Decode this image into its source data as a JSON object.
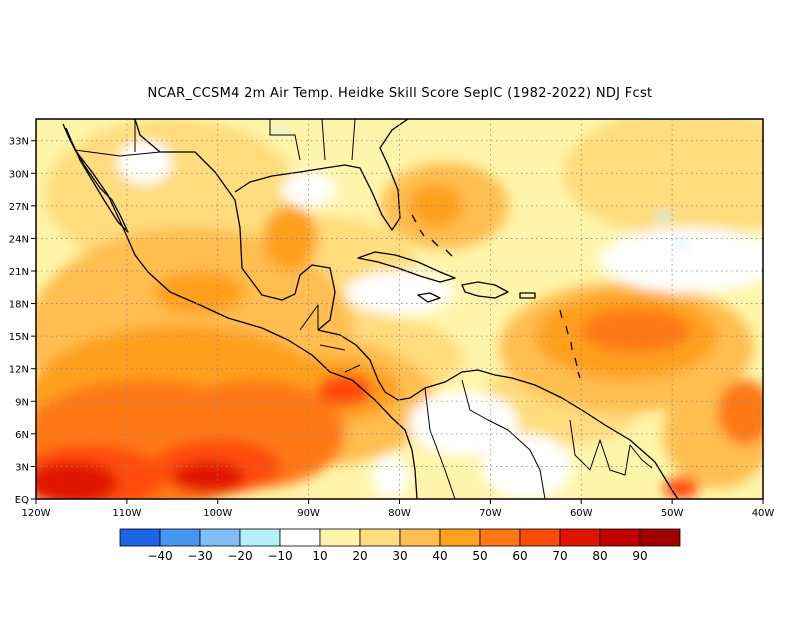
{
  "title": "NCAR_CCSM4  2m Air Temp. Heidke Skill Score SepIC (1982-2022) NDJ Fcst",
  "map": {
    "lon_range": [
      -120,
      -40
    ],
    "lat_range": [
      0,
      35
    ],
    "x_ticks": [
      {
        "lon": -120,
        "label": "120W"
      },
      {
        "lon": -110,
        "label": "110W"
      },
      {
        "lon": -100,
        "label": "100W"
      },
      {
        "lon": -90,
        "label": "90W"
      },
      {
        "lon": -80,
        "label": "80W"
      },
      {
        "lon": -70,
        "label": "70W"
      },
      {
        "lon": -60,
        "label": "60W"
      },
      {
        "lon": -50,
        "label": "50W"
      },
      {
        "lon": -40,
        "label": "40W"
      }
    ],
    "y_ticks": [
      {
        "lat": 0,
        "label": "EQ"
      },
      {
        "lat": 3,
        "label": "3N"
      },
      {
        "lat": 6,
        "label": "6N"
      },
      {
        "lat": 9,
        "label": "9N"
      },
      {
        "lat": 12,
        "label": "12N"
      },
      {
        "lat": 15,
        "label": "15N"
      },
      {
        "lat": 18,
        "label": "18N"
      },
      {
        "lat": 21,
        "label": "21N"
      },
      {
        "lat": 24,
        "label": "24N"
      },
      {
        "lat": 27,
        "label": "27N"
      },
      {
        "lat": 30,
        "label": "30N"
      },
      {
        "lat": 33,
        "label": "33N"
      }
    ],
    "gridlines": true
  },
  "colorbar": {
    "colors": [
      "#1f64e6",
      "#4696f0",
      "#82bef5",
      "#b4f0fa",
      "#ffffff",
      "#fff5aa",
      "#ffdc7d",
      "#ffbe50",
      "#ffa01e",
      "#ff7814",
      "#ff4b0a",
      "#e11400",
      "#c00000",
      "#a00000"
    ],
    "labels": [
      "-40",
      "-30",
      "-20",
      "-10",
      "10",
      "20",
      "30",
      "40",
      "50",
      "60",
      "70",
      "80",
      "90"
    ]
  },
  "skill_regions": [
    {
      "level": 1,
      "lon": -105,
      "lat": 28,
      "rx": 14,
      "ry": 7
    },
    {
      "level": 1,
      "lon": -48,
      "lat": 30,
      "rx": 14,
      "ry": 6
    },
    {
      "level": 1,
      "lon": -88,
      "lat": 21,
      "rx": 10,
      "ry": 5
    },
    {
      "level": 1,
      "lon": -85,
      "lat": 13,
      "rx": 12,
      "ry": 4
    },
    {
      "level": 1,
      "lon": -62,
      "lat": 9,
      "rx": 9,
      "ry": 4
    },
    {
      "level": 2,
      "lon": -103,
      "lat": 15,
      "rx": 18,
      "ry": 10
    },
    {
      "level": 2,
      "lon": -55,
      "lat": 14,
      "rx": 14,
      "ry": 6
    },
    {
      "level": 2,
      "lon": -90,
      "lat": 9,
      "rx": 14,
      "ry": 6
    },
    {
      "level": 2,
      "lon": -75,
      "lat": 27,
      "rx": 7,
      "ry": 4
    },
    {
      "level": 2,
      "lon": -45,
      "lat": 6,
      "rx": 6,
      "ry": 5
    },
    {
      "level": 3,
      "lon": -104,
      "lat": 9,
      "rx": 17,
      "ry": 7
    },
    {
      "level": 3,
      "lon": -55,
      "lat": 15,
      "rx": 10,
      "ry": 4
    },
    {
      "level": 3,
      "lon": -88,
      "lat": 10,
      "rx": 8,
      "ry": 3
    },
    {
      "level": 3,
      "lon": -76,
      "lat": 27,
      "rx": 3,
      "ry": 2
    },
    {
      "level": 4,
      "lon": -108,
      "lat": 5,
      "rx": 14,
      "ry": 6
    },
    {
      "level": 4,
      "lon": -96,
      "lat": 6,
      "rx": 10,
      "ry": 5
    },
    {
      "level": 4,
      "lon": -54,
      "lat": 15.5,
      "rx": 6,
      "ry": 2
    },
    {
      "level": 4,
      "lon": -42,
      "lat": 8,
      "rx": 3,
      "ry": 3
    },
    {
      "level": 5,
      "lon": -114,
      "lat": 2,
      "rx": 8,
      "ry": 3
    },
    {
      "level": 5,
      "lon": -100,
      "lat": 3,
      "rx": 7,
      "ry": 2.5
    },
    {
      "level": 5,
      "lon": -86,
      "lat": 10,
      "rx": 3,
      "ry": 1.5
    },
    {
      "level": 5,
      "lon": -49,
      "lat": 1,
      "rx": 2,
      "ry": 1
    },
    {
      "level": 6,
      "lon": -116,
      "lat": 1.5,
      "rx": 5,
      "ry": 2
    },
    {
      "level": 6,
      "lon": -101,
      "lat": 2,
      "rx": 4,
      "ry": 1.5
    },
    {
      "level": 3,
      "lon": -102,
      "lat": 19,
      "rx": 5,
      "ry": 2
    },
    {
      "level": 3,
      "lon": -92,
      "lat": 24,
      "rx": 3,
      "ry": 3
    },
    {
      "level": 2,
      "lon": -110,
      "lat": 21,
      "rx": 4,
      "ry": 2
    },
    {
      "level": 0,
      "lon": -90,
      "lat": 28.5,
      "rx": 3,
      "ry": 1.6
    },
    {
      "level": 0,
      "lon": -80,
      "lat": 19,
      "rx": 6,
      "ry": 2
    },
    {
      "level": 0,
      "lon": -48,
      "lat": 22,
      "rx": 10,
      "ry": 3
    },
    {
      "level": 0,
      "lon": -108,
      "lat": 31,
      "rx": 3,
      "ry": 2
    },
    {
      "level": 0,
      "lon": -73,
      "lat": 7,
      "rx": 6,
      "ry": 3
    },
    {
      "level": 0,
      "lon": -66,
      "lat": 3,
      "rx": 5,
      "ry": 3
    },
    {
      "level": 0,
      "lon": -81,
      "lat": 2,
      "rx": 2,
      "ry": 2
    },
    {
      "level": -1,
      "lon": -51,
      "lat": 26,
      "rx": 0.6,
      "ry": 0.6
    },
    {
      "level": -1,
      "lon": -49,
      "lat": 23.5,
      "rx": 0.5,
      "ry": 0.5
    },
    {
      "level": -1,
      "lon": -93,
      "lat": 34,
      "rx": 0.5,
      "ry": 0.4
    }
  ]
}
